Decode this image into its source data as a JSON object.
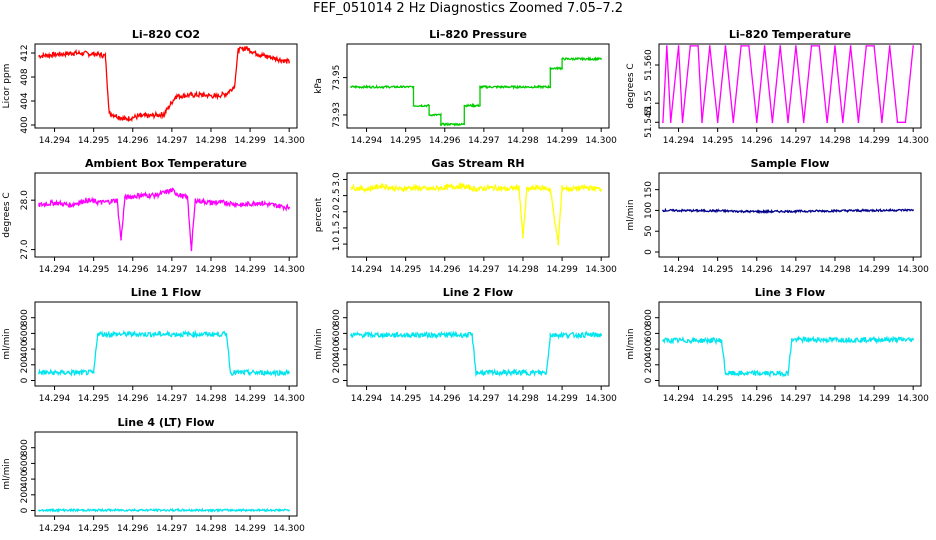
{
  "page_title": "FEF_051014  2 Hz Diagnostics Zoomed 7.05–7.2",
  "chart_data": [
    {
      "type": "line",
      "title": "Li–820 CO2",
      "ylabel": "Licor ppm",
      "color": "#ff0000",
      "xlim": [
        14.2935,
        14.3002
      ],
      "ylim": [
        399.5,
        413.5
      ],
      "x_ticks": [
        "14.294",
        "14.295",
        "14.296",
        "14.297",
        "14.298",
        "14.299",
        "14.300"
      ],
      "y_ticks": [
        "400",
        "404",
        "408",
        "412"
      ],
      "series": [
        {
          "x": [
            14.2936,
            14.2945,
            14.2951,
            14.2953,
            14.2954,
            14.2958,
            14.2962,
            14.2964,
            14.2968,
            14.2971,
            14.2975,
            14.2978,
            14.2981,
            14.2984,
            14.2986,
            14.2987,
            14.2989,
            14.2992,
            14.2994,
            14.2997,
            14.3
          ],
          "y": [
            411.5,
            412.0,
            411.8,
            411.5,
            402.0,
            401.0,
            401.5,
            401.5,
            401.8,
            404.8,
            405.0,
            405.0,
            404.8,
            405.2,
            406.5,
            412.5,
            412.8,
            411.8,
            411.5,
            411.0,
            410.5
          ]
        }
      ]
    },
    {
      "type": "line",
      "title": "Li–820 Pressure",
      "ylabel": "kPa",
      "color": "#00cc00",
      "xlim": [
        14.2935,
        14.3002
      ],
      "ylim": [
        73.923,
        73.968
      ],
      "x_ticks": [
        "14.294",
        "14.295",
        "14.296",
        "14.297",
        "14.298",
        "14.299",
        "14.300"
      ],
      "y_ticks": [
        "73.93",
        "73.95"
      ],
      "series": [
        {
          "x": [
            14.2936,
            14.2949,
            14.2952,
            14.2952,
            14.2956,
            14.2956,
            14.2959,
            14.2959,
            14.2965,
            14.2965,
            14.2969,
            14.2969,
            14.298,
            14.2987,
            14.2987,
            14.299,
            14.299,
            14.2994,
            14.3
          ],
          "y": [
            73.945,
            73.945,
            73.945,
            73.935,
            73.935,
            73.93,
            73.93,
            73.925,
            73.925,
            73.935,
            73.935,
            73.945,
            73.945,
            73.945,
            73.955,
            73.955,
            73.96,
            73.96,
            73.96
          ]
        }
      ]
    },
    {
      "type": "line",
      "title": "Li–820 Temperature",
      "ylabel": "degrees C",
      "color": "#ff00ff",
      "xlim": [
        14.2935,
        14.3002
      ],
      "ylim": [
        51.5435,
        51.5655
      ],
      "x_ticks": [
        "14.294",
        "14.295",
        "14.296",
        "14.297",
        "14.298",
        "14.299",
        "14.300"
      ],
      "y_ticks": [
        "51.545",
        "51.55",
        "51.560"
      ],
      "series": [
        {
          "x": [
            14.2936,
            14.2937,
            14.2938,
            14.294,
            14.2941,
            14.2943,
            14.2945,
            14.2946,
            14.2948,
            14.295,
            14.2952,
            14.2954,
            14.2956,
            14.2958,
            14.296,
            14.2962,
            14.2964,
            14.2966,
            14.2968,
            14.297,
            14.2972,
            14.2974,
            14.2976,
            14.2978,
            14.298,
            14.2982,
            14.2984,
            14.2986,
            14.2988,
            14.299,
            14.2992,
            14.2994,
            14.2996,
            14.2998,
            14.3
          ],
          "y": [
            51.545,
            51.565,
            51.545,
            51.565,
            51.545,
            51.565,
            51.565,
            51.545,
            51.565,
            51.545,
            51.565,
            51.545,
            51.565,
            51.565,
            51.545,
            51.565,
            51.545,
            51.565,
            51.545,
            51.565,
            51.545,
            51.565,
            51.565,
            51.545,
            51.565,
            51.545,
            51.565,
            51.545,
            51.565,
            51.565,
            51.545,
            51.565,
            51.545,
            51.545,
            51.565
          ]
        }
      ]
    },
    {
      "type": "line",
      "title": "Ambient Box Temperature",
      "ylabel": "degrees C",
      "color": "#ff00ff",
      "xlim": [
        14.2935,
        14.3002
      ],
      "ylim": [
        26.85,
        28.55
      ],
      "x_ticks": [
        "14.294",
        "14.295",
        "14.296",
        "14.297",
        "14.298",
        "14.299",
        "14.300"
      ],
      "y_ticks": [
        "27.0",
        "28.0"
      ],
      "series": [
        {
          "x": [
            14.2936,
            14.294,
            14.2944,
            14.2948,
            14.2952,
            14.2956,
            14.2957,
            14.2958,
            14.2962,
            14.2966,
            14.297,
            14.2972,
            14.2974,
            14.2975,
            14.2976,
            14.298,
            14.2984,
            14.2988,
            14.2992,
            14.2996,
            14.3
          ],
          "y": [
            27.9,
            27.95,
            27.9,
            28.0,
            27.95,
            28.0,
            27.2,
            28.05,
            28.1,
            28.1,
            28.2,
            28.1,
            28.05,
            27.0,
            28.0,
            27.95,
            27.95,
            27.9,
            27.95,
            27.9,
            27.85
          ]
        }
      ]
    },
    {
      "type": "line",
      "title": "Gas Stream RH",
      "ylabel": "percent",
      "color": "#ffff00",
      "xlim": [
        14.2935,
        14.3002
      ],
      "ylim": [
        0.6,
        3.2
      ],
      "x_ticks": [
        "14.294",
        "14.295",
        "14.296",
        "14.297",
        "14.298",
        "14.299",
        "14.300"
      ],
      "y_ticks": [
        "1.0",
        "1.5",
        "2.0",
        "2.5",
        "3.0"
      ],
      "series": [
        {
          "x": [
            14.2936,
            14.294,
            14.2944,
            14.2948,
            14.2952,
            14.2956,
            14.296,
            14.2964,
            14.2968,
            14.2972,
            14.2976,
            14.2979,
            14.298,
            14.2981,
            14.2984,
            14.2987,
            14.2989,
            14.299,
            14.2992,
            14.2996,
            14.3
          ],
          "y": [
            2.75,
            2.7,
            2.8,
            2.7,
            2.75,
            2.7,
            2.75,
            2.8,
            2.7,
            2.75,
            2.7,
            2.75,
            1.2,
            2.7,
            2.75,
            2.7,
            1.0,
            2.75,
            2.7,
            2.75,
            2.7
          ]
        }
      ]
    },
    {
      "type": "line",
      "title": "Sample Flow",
      "ylabel": "ml/min",
      "color": "#00008b",
      "xlim": [
        14.2935,
        14.3002
      ],
      "ylim": [
        -12,
        190
      ],
      "x_ticks": [
        "14.294",
        "14.295",
        "14.296",
        "14.297",
        "14.298",
        "14.299",
        "14.300"
      ],
      "y_ticks": [
        "0",
        "50",
        "100",
        "150"
      ],
      "series": [
        {
          "x": [
            14.2936,
            14.295,
            14.296,
            14.297,
            14.298,
            14.299,
            14.3
          ],
          "y": [
            100,
            99,
            97,
            98,
            99,
            100,
            101
          ]
        }
      ]
    },
    {
      "type": "line",
      "title": "Line 1 Flow",
      "ylabel": "ml/min",
      "color": "#00e5ee",
      "xlim": [
        14.2935,
        14.3002
      ],
      "ylim": [
        -70,
        1000
      ],
      "x_ticks": [
        "14.294",
        "14.295",
        "14.296",
        "14.297",
        "14.298",
        "14.299",
        "14.300"
      ],
      "y_ticks": [
        "0",
        "200",
        "400",
        "600",
        "800"
      ],
      "series": [
        {
          "x": [
            14.2936,
            14.295,
            14.2951,
            14.2984,
            14.2985,
            14.3
          ],
          "y": [
            100,
            100,
            590,
            590,
            100,
            100
          ]
        }
      ]
    },
    {
      "type": "line",
      "title": "Line 2 Flow",
      "ylabel": "ml/min",
      "color": "#00e5ee",
      "xlim": [
        14.2935,
        14.3002
      ],
      "ylim": [
        -70,
        1000
      ],
      "x_ticks": [
        "14.294",
        "14.295",
        "14.296",
        "14.297",
        "14.298",
        "14.299",
        "14.300"
      ],
      "y_ticks": [
        "0",
        "200",
        "400",
        "600",
        "800"
      ],
      "series": [
        {
          "x": [
            14.2936,
            14.2967,
            14.2968,
            14.2986,
            14.2987,
            14.3
          ],
          "y": [
            580,
            580,
            100,
            100,
            580,
            580
          ]
        }
      ]
    },
    {
      "type": "line",
      "title": "Line 3 Flow",
      "ylabel": "ml/min",
      "color": "#00e5ee",
      "xlim": [
        14.2935,
        14.3002
      ],
      "ylim": [
        -70,
        1000
      ],
      "x_ticks": [
        "14.294",
        "14.295",
        "14.296",
        "14.297",
        "14.298",
        "14.299",
        "14.300"
      ],
      "y_ticks": [
        "0",
        "200",
        "400",
        "600",
        "800"
      ],
      "series": [
        {
          "x": [
            14.2936,
            14.2951,
            14.2952,
            14.2968,
            14.2969,
            14.3
          ],
          "y": [
            510,
            510,
            90,
            90,
            520,
            520
          ]
        }
      ]
    },
    {
      "type": "line",
      "title": "Line 4 (LT) Flow",
      "ylabel": "ml/min",
      "color": "#00e5ee",
      "xlim": [
        14.2935,
        14.3002
      ],
      "ylim": [
        -70,
        1000
      ],
      "x_ticks": [
        "14.294",
        "14.295",
        "14.296",
        "14.297",
        "14.298",
        "14.299",
        "14.300"
      ],
      "y_ticks": [
        "0",
        "200",
        "400",
        "600",
        "800"
      ],
      "series": [
        {
          "x": [
            14.2936,
            14.295,
            14.296,
            14.297,
            14.298,
            14.299,
            14.3
          ],
          "y": [
            4,
            4,
            5,
            4,
            4,
            5,
            4
          ]
        }
      ]
    }
  ]
}
